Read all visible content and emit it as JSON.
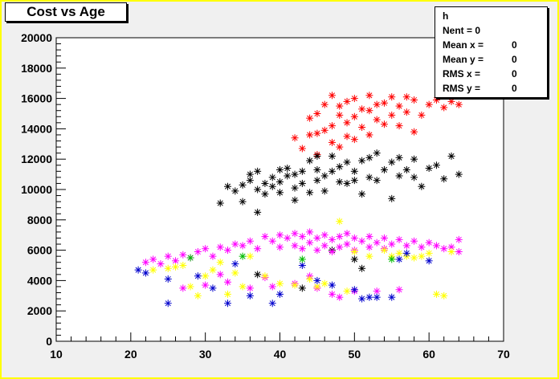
{
  "chart_data": {
    "type": "scatter",
    "title": "Cost vs Age",
    "xlabel": "",
    "ylabel": "",
    "xlim": [
      10,
      70
    ],
    "ylim": [
      0,
      20000
    ],
    "x_ticks": [
      10,
      20,
      30,
      40,
      50,
      60,
      70
    ],
    "y_ticks": [
      0,
      2000,
      4000,
      6000,
      8000,
      10000,
      12000,
      14000,
      16000,
      18000,
      20000
    ],
    "x_tick_labels": [
      "10",
      "20",
      "30",
      "40",
      "50",
      "60",
      "70"
    ],
    "y_tick_labels": [
      "0",
      "2000",
      "4000",
      "6000",
      "8000",
      "10000",
      "12000",
      "14000",
      "16000",
      "18000",
      "20000"
    ],
    "marker": "*",
    "grid": false,
    "legend": "none",
    "series": [
      {
        "color": "#ff0000",
        "points": [
          [
            42,
            13400
          ],
          [
            43,
            12700
          ],
          [
            44,
            13600
          ],
          [
            44,
            14700
          ],
          [
            45,
            12300
          ],
          [
            45,
            13700
          ],
          [
            45,
            15000
          ],
          [
            46,
            13900
          ],
          [
            46,
            15600
          ],
          [
            47,
            13100
          ],
          [
            47,
            14200
          ],
          [
            47,
            16200
          ],
          [
            48,
            12800
          ],
          [
            48,
            14900
          ],
          [
            48,
            15500
          ],
          [
            49,
            13500
          ],
          [
            49,
            14400
          ],
          [
            49,
            15800
          ],
          [
            50,
            13300
          ],
          [
            50,
            14800
          ],
          [
            50,
            16000
          ],
          [
            51,
            14100
          ],
          [
            51,
            15300
          ],
          [
            52,
            13600
          ],
          [
            52,
            15200
          ],
          [
            52,
            16200
          ],
          [
            53,
            14600
          ],
          [
            53,
            15600
          ],
          [
            54,
            14300
          ],
          [
            54,
            15700
          ],
          [
            55,
            14900
          ],
          [
            55,
            16100
          ],
          [
            56,
            14200
          ],
          [
            56,
            15500
          ],
          [
            57,
            16100
          ],
          [
            57,
            15100
          ],
          [
            58,
            13800
          ],
          [
            58,
            15900
          ],
          [
            59,
            14900
          ],
          [
            60,
            15600
          ],
          [
            61,
            15900
          ],
          [
            62,
            15400
          ],
          [
            63,
            15800
          ],
          [
            64,
            15600
          ]
        ]
      },
      {
        "color": "#000000",
        "points": [
          [
            32,
            9100
          ],
          [
            33,
            10200
          ],
          [
            34,
            9900
          ],
          [
            35,
            10300
          ],
          [
            35,
            9200
          ],
          [
            36,
            10600
          ],
          [
            36,
            11000
          ],
          [
            37,
            10000
          ],
          [
            37,
            11200
          ],
          [
            37,
            8500
          ],
          [
            38,
            10400
          ],
          [
            38,
            9700
          ],
          [
            39,
            10800
          ],
          [
            39,
            10200
          ],
          [
            40,
            10500
          ],
          [
            40,
            11300
          ],
          [
            40,
            9800
          ],
          [
            41,
            10900
          ],
          [
            41,
            11400
          ],
          [
            42,
            10100
          ],
          [
            42,
            9300
          ],
          [
            42,
            11000
          ],
          [
            43,
            11200
          ],
          [
            43,
            10400
          ],
          [
            44,
            9800
          ],
          [
            44,
            11900
          ],
          [
            45,
            10600
          ],
          [
            45,
            11300
          ],
          [
            45,
            12200
          ],
          [
            46,
            10900
          ],
          [
            46,
            9900
          ],
          [
            47,
            11200
          ],
          [
            47,
            12200
          ],
          [
            48,
            10500
          ],
          [
            48,
            11500
          ],
          [
            49,
            10400
          ],
          [
            49,
            11800
          ],
          [
            50,
            10600
          ],
          [
            50,
            11200
          ],
          [
            51,
            9700
          ],
          [
            51,
            11900
          ],
          [
            52,
            10800
          ],
          [
            52,
            12100
          ],
          [
            53,
            12400
          ],
          [
            53,
            10600
          ],
          [
            54,
            11300
          ],
          [
            55,
            11800
          ],
          [
            55,
            9400
          ],
          [
            56,
            10900
          ],
          [
            56,
            12100
          ],
          [
            57,
            11300
          ],
          [
            58,
            10800
          ],
          [
            58,
            12000
          ],
          [
            59,
            10200
          ],
          [
            60,
            11400
          ],
          [
            61,
            11600
          ],
          [
            62,
            10700
          ],
          [
            63,
            12200
          ],
          [
            64,
            11000
          ],
          [
            47,
            6000
          ],
          [
            50,
            5400
          ],
          [
            51,
            4800
          ],
          [
            37,
            4400
          ],
          [
            43,
            3500
          ]
        ]
      },
      {
        "color": "#ff00ff",
        "points": [
          [
            22,
            5200
          ],
          [
            23,
            5400
          ],
          [
            24,
            5100
          ],
          [
            25,
            5600
          ],
          [
            26,
            5300
          ],
          [
            27,
            5700
          ],
          [
            28,
            5500
          ],
          [
            29,
            5900
          ],
          [
            30,
            6100
          ],
          [
            31,
            5600
          ],
          [
            32,
            6200
          ],
          [
            33,
            6000
          ],
          [
            34,
            6400
          ],
          [
            35,
            6300
          ],
          [
            36,
            6600
          ],
          [
            37,
            6100
          ],
          [
            38,
            6900
          ],
          [
            39,
            6600
          ],
          [
            40,
            7000
          ],
          [
            40,
            6200
          ],
          [
            41,
            6800
          ],
          [
            42,
            7100
          ],
          [
            42,
            6300
          ],
          [
            43,
            6900
          ],
          [
            43,
            6100
          ],
          [
            44,
            7200
          ],
          [
            44,
            6500
          ],
          [
            45,
            6800
          ],
          [
            45,
            6000
          ],
          [
            46,
            7000
          ],
          [
            46,
            6300
          ],
          [
            47,
            6700
          ],
          [
            47,
            5900
          ],
          [
            48,
            6900
          ],
          [
            48,
            6200
          ],
          [
            49,
            7100
          ],
          [
            49,
            6400
          ],
          [
            50,
            6800
          ],
          [
            50,
            6000
          ],
          [
            51,
            6600
          ],
          [
            52,
            6900
          ],
          [
            52,
            6200
          ],
          [
            53,
            6500
          ],
          [
            54,
            6800
          ],
          [
            54,
            6100
          ],
          [
            55,
            6400
          ],
          [
            56,
            6700
          ],
          [
            57,
            6300
          ],
          [
            58,
            6600
          ],
          [
            59,
            6200
          ],
          [
            60,
            6500
          ],
          [
            61,
            6300
          ],
          [
            62,
            6100
          ],
          [
            63,
            6200
          ],
          [
            64,
            6700
          ],
          [
            64,
            5900
          ],
          [
            27,
            3500
          ],
          [
            30,
            3700
          ],
          [
            33,
            3900
          ],
          [
            36,
            3500
          ],
          [
            39,
            3600
          ],
          [
            42,
            3800
          ],
          [
            45,
            3500
          ],
          [
            47,
            3100
          ],
          [
            48,
            2900
          ],
          [
            50,
            3300
          ],
          [
            53,
            3300
          ],
          [
            56,
            3400
          ],
          [
            32,
            4400
          ],
          [
            38,
            4200
          ],
          [
            44,
            4300
          ]
        ]
      },
      {
        "color": "#ffff00",
        "points": [
          [
            23,
            4700
          ],
          [
            25,
            4800
          ],
          [
            26,
            4900
          ],
          [
            27,
            5000
          ],
          [
            28,
            3600
          ],
          [
            29,
            3000
          ],
          [
            30,
            4300
          ],
          [
            31,
            4700
          ],
          [
            32,
            5200
          ],
          [
            33,
            3100
          ],
          [
            34,
            4500
          ],
          [
            35,
            3600
          ],
          [
            36,
            5600
          ],
          [
            38,
            4300
          ],
          [
            40,
            3800
          ],
          [
            42,
            3700
          ],
          [
            44,
            4100
          ],
          [
            45,
            3600
          ],
          [
            46,
            3800
          ],
          [
            48,
            7900
          ],
          [
            49,
            3300
          ],
          [
            50,
            5900
          ],
          [
            52,
            5600
          ],
          [
            54,
            6000
          ],
          [
            55,
            5600
          ],
          [
            56,
            5800
          ],
          [
            57,
            5600
          ],
          [
            58,
            5500
          ],
          [
            59,
            5600
          ],
          [
            60,
            5800
          ],
          [
            61,
            3100
          ],
          [
            62,
            3000
          ],
          [
            63,
            5900
          ]
        ]
      },
      {
        "color": "#0000cc",
        "points": [
          [
            21,
            4700
          ],
          [
            22,
            4500
          ],
          [
            25,
            4100
          ],
          [
            25,
            2500
          ],
          [
            29,
            4300
          ],
          [
            31,
            3500
          ],
          [
            33,
            2500
          ],
          [
            34,
            5100
          ],
          [
            36,
            3000
          ],
          [
            39,
            2500
          ],
          [
            40,
            3100
          ],
          [
            43,
            5000
          ],
          [
            45,
            4000
          ],
          [
            47,
            3700
          ],
          [
            50,
            3400
          ],
          [
            51,
            2800
          ],
          [
            52,
            2900
          ],
          [
            53,
            2900
          ],
          [
            55,
            2900
          ],
          [
            56,
            5400
          ],
          [
            57,
            5800
          ],
          [
            60,
            5300
          ]
        ]
      },
      {
        "color": "#00bb00",
        "points": [
          [
            28,
            5500
          ],
          [
            35,
            5600
          ],
          [
            43,
            5400
          ],
          [
            55,
            5400
          ]
        ]
      }
    ]
  },
  "stats": {
    "name": "h",
    "rows": [
      {
        "label": "Nent = 0",
        "value": ""
      },
      {
        "label": "Mean x =",
        "value": "0"
      },
      {
        "label": "Mean y =",
        "value": "0"
      },
      {
        "label": "RMS x  =",
        "value": "0"
      },
      {
        "label": "RMS y  =",
        "value": "0"
      }
    ]
  }
}
